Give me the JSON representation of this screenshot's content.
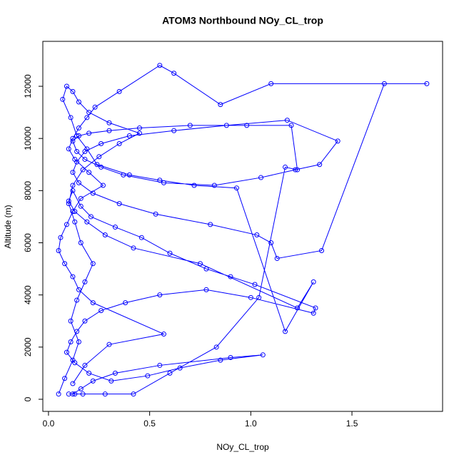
{
  "chart_data": {
    "type": "line",
    "markers": true,
    "title": "ATOM3 Northbound NOy_CL_trop",
    "x_label": "NOy_CL_trop",
    "y_label": "Altitude (m)",
    "xlim": [
      -0.028,
      1.948
    ],
    "ylim": [
      -465,
      13723
    ],
    "xticks": [
      {
        "value": 0,
        "label": "0.0"
      },
      {
        "value": 0.5,
        "label": "0.5"
      },
      {
        "value": 1,
        "label": "1.0"
      },
      {
        "value": 1.5,
        "label": "1.5"
      }
    ],
    "yticks": [
      0,
      2000,
      4000,
      6000,
      8000,
      10000,
      12000
    ],
    "x": [
      0.05,
      0.08,
      0.12,
      0.15,
      0.11,
      0.14,
      0.18,
      0.22,
      0.16,
      0.13,
      0.1,
      0.12,
      0.17,
      0.25,
      0.35,
      0.45,
      0.3,
      0.2,
      0.15,
      0.12,
      0.09,
      0.07,
      0.11,
      0.14,
      0.19,
      0.24,
      0.4,
      0.55,
      0.72,
      0.93,
      1.17,
      1.31,
      1.23,
      0.75,
      0.42,
      0.28,
      0.19,
      0.13,
      0.1,
      0.12,
      0.16,
      0.21,
      0.33,
      0.46,
      0.6,
      0.78,
      0.9,
      1.02,
      1.32,
      1.31,
      1.0,
      0.78,
      0.55,
      0.38,
      0.26,
      0.18,
      0.14,
      0.11,
      0.09,
      0.13,
      0.2,
      0.31,
      0.49,
      0.65,
      0.85,
      1.06,
      0.9,
      0.55,
      0.33,
      0.22,
      0.16,
      0.12,
      0.1,
      0.13,
      0.17,
      0.28,
      0.42,
      0.6,
      0.83,
      1.04,
      1.17,
      1.23,
      1.2,
      0.98,
      0.7,
      0.45,
      0.3,
      0.2,
      0.15,
      0.12,
      0.14,
      0.18,
      0.26,
      0.37,
      0.57,
      0.82,
      1.05,
      1.22,
      1.34,
      1.43,
      1.18,
      0.88,
      0.62,
      0.4,
      0.26,
      0.18,
      0.14,
      0.12,
      0.15,
      0.22,
      0.35,
      0.53,
      0.8,
      1.03,
      1.1,
      1.13,
      1.35,
      1.66,
      1.87,
      1.1,
      0.85,
      0.62,
      0.55,
      0.35,
      0.23,
      0.19,
      0.15,
      0.12,
      0.1,
      0.13,
      0.2,
      0.27,
      0.16,
      0.12,
      0.09,
      0.06,
      0.05,
      0.08,
      0.12,
      0.15,
      0.22,
      0.57,
      0.3,
      0.18,
      0.12
    ],
    "series": [
      {
        "color": "#0000ff",
        "values": [
          200,
          800,
          1500,
          2200,
          3000,
          3800,
          4500,
          5200,
          6000,
          6800,
          7500,
          8200,
          8800,
          9300,
          9800,
          10200,
          10600,
          11000,
          11400,
          11800,
          12000,
          11500,
          10800,
          10100,
          9600,
          9000,
          8600,
          8400,
          8200,
          8100,
          2600,
          4500,
          3500,
          5200,
          5800,
          6300,
          6800,
          7200,
          7600,
          8000,
          7400,
          7000,
          6600,
          6200,
          5600,
          5000,
          4700,
          4400,
          3500,
          3300,
          3900,
          4200,
          4000,
          3700,
          3400,
          3000,
          2600,
          2200,
          1800,
          1400,
          1000,
          700,
          900,
          1200,
          1500,
          1700,
          1600,
          1300,
          1000,
          700,
          400,
          200,
          200,
          200,
          200,
          200,
          200,
          1000,
          2000,
          3900,
          8900,
          8800,
          10500,
          10500,
          10500,
          10400,
          10300,
          10200,
          10100,
          9900,
          9500,
          9200,
          8900,
          8600,
          8300,
          8200,
          8500,
          8800,
          9000,
          9900,
          10700,
          10500,
          10300,
          10100,
          9800,
          9500,
          9100,
          8700,
          8300,
          7900,
          7500,
          7100,
          6700,
          6300,
          6000,
          5400,
          5700,
          12100,
          12100,
          12100,
          11300,
          12500,
          12800,
          11800,
          11200,
          10800,
          10400,
          10000,
          9600,
          9200,
          8700,
          8200,
          7700,
          7200,
          6700,
          6200,
          5700,
          5200,
          4700,
          4200,
          3700,
          2500,
          2100,
          1300,
          600
        ]
      }
    ]
  }
}
